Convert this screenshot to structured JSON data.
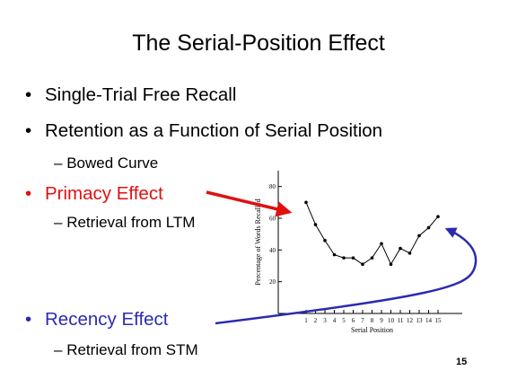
{
  "slide": {
    "title": "The Serial-Position Effect",
    "bullets": [
      {
        "text": "Single-Trial Free Recall",
        "color": "#000000"
      },
      {
        "text": "Retention as a Function of Serial Position",
        "color": "#000000"
      },
      {
        "text": "Primacy Effect",
        "color": "#e01010"
      },
      {
        "text": "Recency Effect",
        "color": "#2b2bb0"
      }
    ],
    "subs": [
      {
        "text": "Bowed Curve"
      },
      {
        "text": "Retrieval from LTM"
      },
      {
        "text": "Retrieval from STM"
      }
    ],
    "bullet_glyph": "•",
    "dash_glyph": "–",
    "page_number": "15"
  },
  "chart_data": {
    "type": "line",
    "title": "",
    "xlabel": "Serial Position",
    "ylabel": "Percentage of Words Recalled",
    "x": [
      1,
      2,
      3,
      4,
      5,
      6,
      7,
      8,
      9,
      10,
      11,
      12,
      13,
      14,
      15
    ],
    "series": [
      {
        "values": [
          70,
          56,
          46,
          37,
          35,
          35,
          31,
          35,
          44,
          31,
          41,
          38,
          49,
          54,
          61
        ]
      }
    ],
    "xticks": [
      "1",
      "2",
      "3",
      "4",
      "5",
      "6",
      "7",
      "8",
      "9",
      "10",
      "11",
      "12",
      "13",
      "14",
      "15"
    ],
    "yticks": [
      20,
      40,
      60,
      80
    ],
    "ylim": [
      0,
      90
    ],
    "grid": false
  },
  "arrows": [
    {
      "name": "primacy-arrow",
      "color": "#e01010"
    },
    {
      "name": "recency-arrow",
      "color": "#2b2bb0"
    }
  ]
}
